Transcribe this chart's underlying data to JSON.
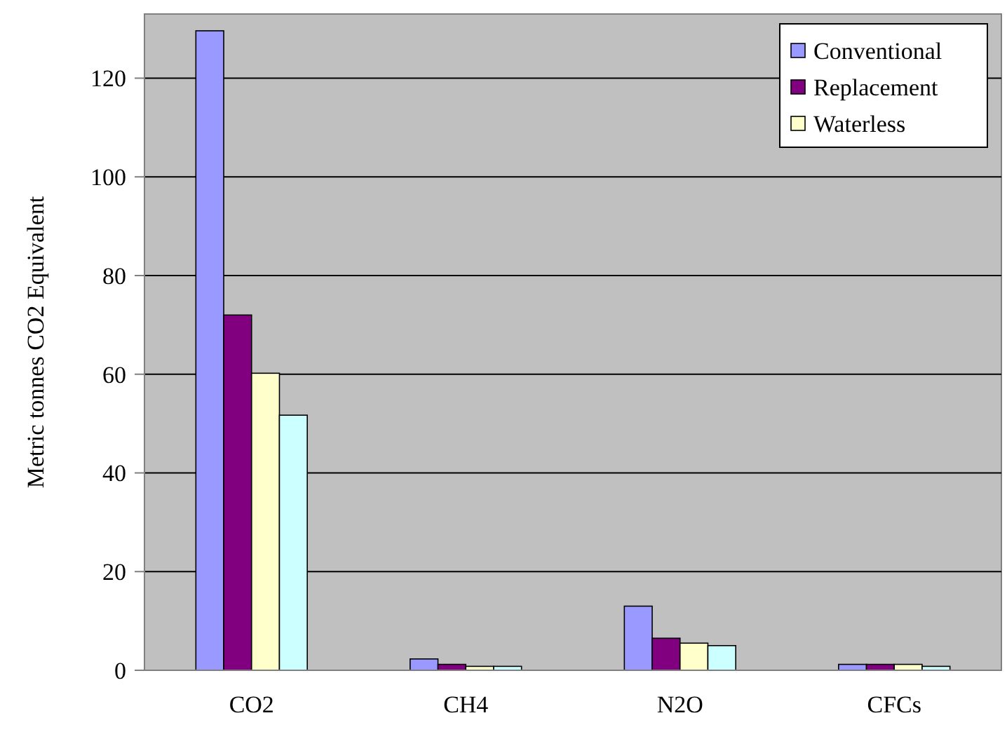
{
  "chart_data": {
    "type": "bar",
    "ylabel": "Metric tonnes CO2 Equivalent",
    "categories": [
      "CO2",
      "CH4",
      "N2O",
      "CFCs"
    ],
    "series": [
      {
        "name": "Conventional",
        "color": "#9999ff",
        "values": [
          129.6,
          2.3,
          13.0,
          1.2
        ]
      },
      {
        "name": "Replacement",
        "color": "#800080",
        "values": [
          72.0,
          1.2,
          6.5,
          1.2
        ]
      },
      {
        "name": "Waterless",
        "color": "#ffffcc",
        "values": [
          60.2,
          0.8,
          5.5,
          1.2
        ]
      },
      {
        "color": "#ccffff",
        "values": [
          51.7,
          0.8,
          5.0,
          0.8
        ]
      }
    ],
    "ylim": [
      0,
      133
    ],
    "yticks": [
      0,
      20,
      40,
      60,
      80,
      100,
      120
    ],
    "grid": "y",
    "legend": "top right"
  }
}
